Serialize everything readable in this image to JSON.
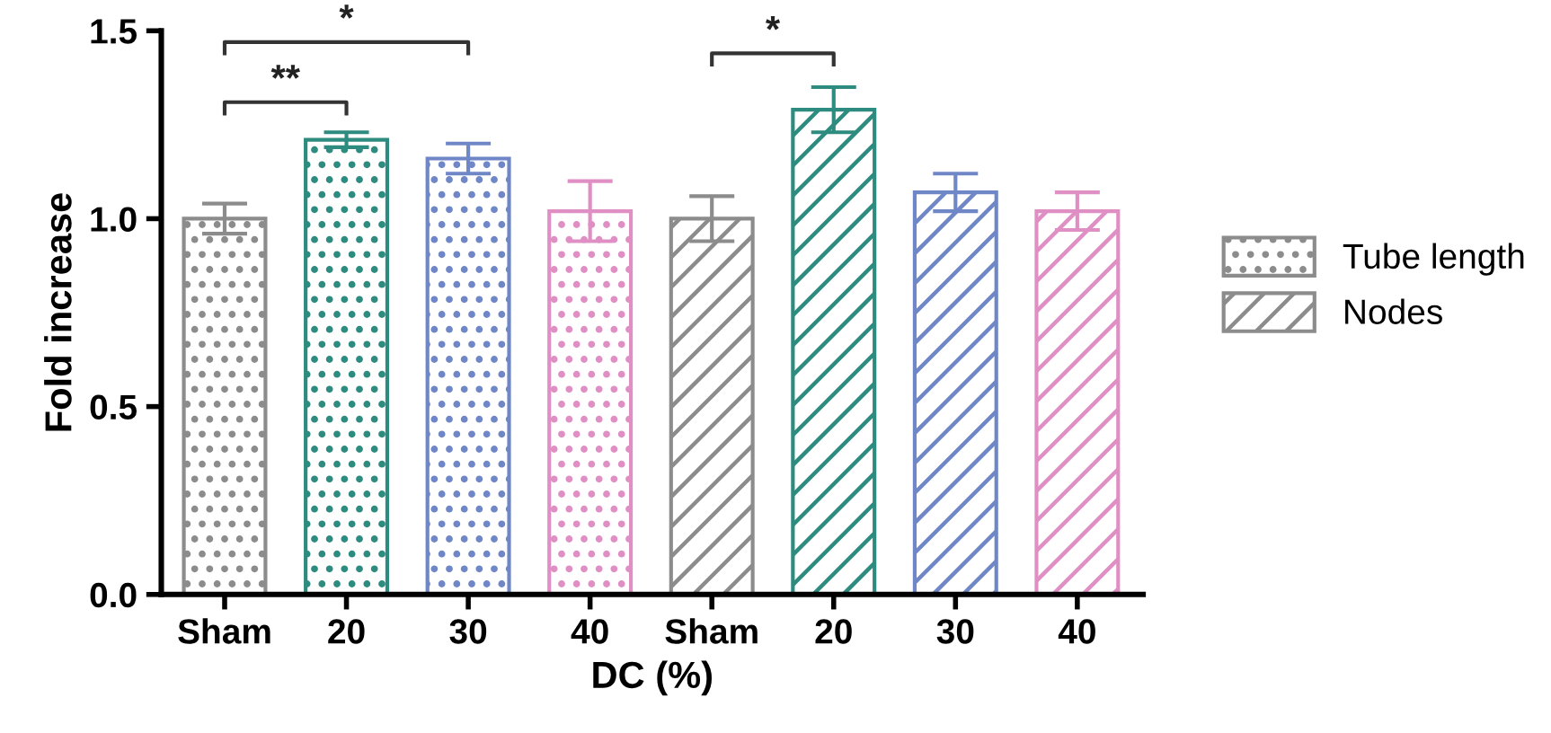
{
  "chart_data": {
    "type": "bar",
    "xlabel": "DC (%)",
    "ylabel": "Fold increase",
    "categories": [
      "Sham",
      "20",
      "30",
      "40",
      "Sham",
      "20",
      "30",
      "40"
    ],
    "series": [
      {
        "name": "Tube length",
        "color": "#8c8c8c",
        "colors": [
          "#8c8c8c",
          "#2e8b7f",
          "#6f87c6",
          "#e08fc4",
          null,
          null,
          null,
          null
        ],
        "values": [
          1.0,
          1.21,
          1.16,
          1.02,
          null,
          null,
          null,
          null
        ],
        "errors": [
          0.04,
          0.02,
          0.04,
          0.08,
          null,
          null,
          null,
          null
        ]
      },
      {
        "name": "Nodes",
        "color": "#8c8c8c",
        "colors": [
          null,
          null,
          null,
          null,
          "#8c8c8c",
          "#2e8b7f",
          "#6f87c6",
          "#e08fc4"
        ],
        "values": [
          null,
          null,
          null,
          null,
          1.0,
          1.29,
          1.07,
          1.02
        ],
        "errors": [
          null,
          null,
          null,
          null,
          0.06,
          0.06,
          0.05,
          0.05
        ]
      }
    ],
    "ylim": [
      0,
      1.5
    ],
    "yticks": [
      {
        "value": 0,
        "label": "0.0"
      },
      {
        "value": 0.5,
        "label": "0.5"
      },
      {
        "value": 1.0,
        "label": "1.0"
      },
      {
        "value": 1.5,
        "label": "1.5"
      }
    ],
    "annotations": [
      "**",
      "*",
      "*"
    ],
    "grid": false,
    "legend": "right"
  }
}
